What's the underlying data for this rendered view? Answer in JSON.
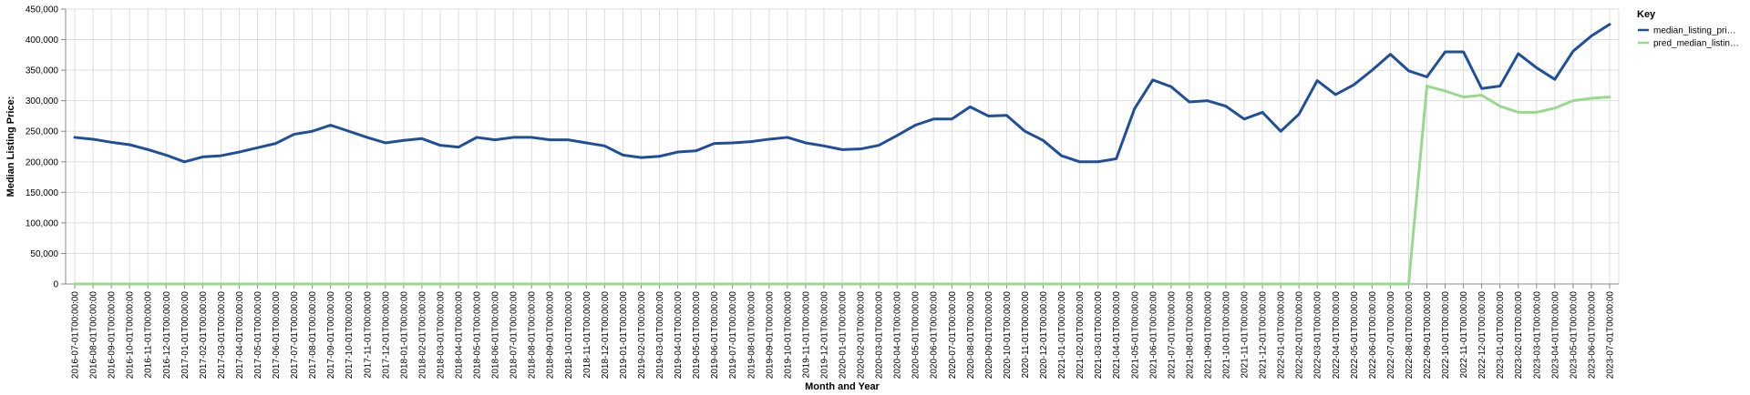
{
  "chart_data": {
    "type": "line",
    "xlabel": "Month and Year",
    "ylabel": "Median Listing Price:",
    "ylim": [
      0,
      450000
    ],
    "yticks": [
      0,
      50000,
      100000,
      150000,
      200000,
      250000,
      300000,
      350000,
      400000,
      450000
    ],
    "ytick_labels": [
      "0",
      "50,000",
      "100,000",
      "150,000",
      "200,000",
      "250,000",
      "300,000",
      "350,000",
      "400,000",
      "450,000"
    ],
    "grid": true,
    "legend": {
      "title": "Key",
      "placement": "right",
      "entries": [
        "median_listing_pri…",
        "pred_median_listin…"
      ]
    },
    "x": [
      "2016-07-01T00:00:00",
      "2016-08-01T00:00:00",
      "2016-09-01T00:00:00",
      "2016-10-01T00:00:00",
      "2016-11-01T00:00:00",
      "2016-12-01T00:00:00",
      "2017-01-01T00:00:00",
      "2017-02-01T00:00:00",
      "2017-03-01T00:00:00",
      "2017-04-01T00:00:00",
      "2017-05-01T00:00:00",
      "2017-06-01T00:00:00",
      "2017-07-01T00:00:00",
      "2017-08-01T00:00:00",
      "2017-09-01T00:00:00",
      "2017-10-01T00:00:00",
      "2017-11-01T00:00:00",
      "2017-12-01T00:00:00",
      "2018-01-01T00:00:00",
      "2018-02-01T00:00:00",
      "2018-03-01T00:00:00",
      "2018-04-01T00:00:00",
      "2018-05-01T00:00:00",
      "2018-06-01T00:00:00",
      "2018-07-01T00:00:00",
      "2018-08-01T00:00:00",
      "2018-09-01T00:00:00",
      "2018-10-01T00:00:00",
      "2018-11-01T00:00:00",
      "2018-12-01T00:00:00",
      "2019-01-01T00:00:00",
      "2019-02-01T00:00:00",
      "2019-03-01T00:00:00",
      "2019-04-01T00:00:00",
      "2019-05-01T00:00:00",
      "2019-06-01T00:00:00",
      "2019-07-01T00:00:00",
      "2019-08-01T00:00:00",
      "2019-09-01T00:00:00",
      "2019-10-01T00:00:00",
      "2019-11-01T00:00:00",
      "2019-12-01T00:00:00",
      "2020-01-01T00:00:00",
      "2020-02-01T00:00:00",
      "2020-03-01T00:00:00",
      "2020-04-01T00:00:00",
      "2020-05-01T00:00:00",
      "2020-06-01T00:00:00",
      "2020-07-01T00:00:00",
      "2020-08-01T00:00:00",
      "2020-09-01T00:00:00",
      "2020-10-01T00:00:00",
      "2020-11-01T00:00:00",
      "2020-12-01T00:00:00",
      "2021-01-01T00:00:00",
      "2021-02-01T00:00:00",
      "2021-03-01T00:00:00",
      "2021-04-01T00:00:00",
      "2021-05-01T00:00:00",
      "2021-06-01T00:00:00",
      "2021-07-01T00:00:00",
      "2021-08-01T00:00:00",
      "2021-09-01T00:00:00",
      "2021-10-01T00:00:00",
      "2021-11-01T00:00:00",
      "2021-12-01T00:00:00",
      "2022-01-01T00:00:00",
      "2022-02-01T00:00:00",
      "2022-03-01T00:00:00",
      "2022-04-01T00:00:00",
      "2022-05-01T00:00:00",
      "2022-06-01T00:00:00",
      "2022-07-01T00:00:00",
      "2022-08-01T00:00:00",
      "2022-09-01T00:00:00",
      "2022-10-01T00:00:00",
      "2022-11-01T00:00:00",
      "2022-12-01T00:00:00",
      "2023-01-01T00:00:00",
      "2023-02-01T00:00:00",
      "2023-03-01T00:00:00",
      "2023-04-01T00:00:00",
      "2023-05-01T00:00:00",
      "2023-06-01T00:00:00",
      "2023-07-01T00:00:00"
    ],
    "series": [
      {
        "name": "median_listing_pri…",
        "color": "#1f4e9a",
        "values": [
          240000,
          237000,
          232000,
          228000,
          220000,
          211000,
          200000,
          208000,
          210000,
          216000,
          223000,
          230000,
          245000,
          250000,
          260000,
          250000,
          240000,
          231000,
          235000,
          238000,
          227000,
          224000,
          240000,
          236000,
          240000,
          240000,
          236000,
          236000,
          231000,
          226000,
          211000,
          207000,
          209000,
          216000,
          218000,
          230000,
          231000,
          233000,
          237000,
          240000,
          231000,
          226000,
          220000,
          221000,
          227000,
          243000,
          260000,
          270000,
          270000,
          290000,
          275000,
          276000,
          250000,
          235000,
          210000,
          200000,
          200000,
          205000,
          287000,
          334000,
          323000,
          298000,
          300000,
          291000,
          270000,
          281000,
          250000,
          278000,
          333000,
          310000,
          326000,
          350000,
          376000,
          349000,
          339000,
          380000,
          380000,
          320000,
          324000,
          377000,
          354000,
          335000,
          381000,
          406000,
          425000
        ]
      },
      {
        "name": "pred_median_listin…",
        "color": "#98d98e",
        "values": [
          0,
          0,
          0,
          0,
          0,
          0,
          0,
          0,
          0,
          0,
          0,
          0,
          0,
          0,
          0,
          0,
          0,
          0,
          0,
          0,
          0,
          0,
          0,
          0,
          0,
          0,
          0,
          0,
          0,
          0,
          0,
          0,
          0,
          0,
          0,
          0,
          0,
          0,
          0,
          0,
          0,
          0,
          0,
          0,
          0,
          0,
          0,
          0,
          0,
          0,
          0,
          0,
          0,
          0,
          0,
          0,
          0,
          0,
          0,
          0,
          0,
          0,
          0,
          0,
          0,
          0,
          0,
          0,
          0,
          0,
          0,
          0,
          0,
          0,
          324000,
          316000,
          306000,
          309000,
          291000,
          281000,
          281000,
          288000,
          300000,
          304000,
          306000
        ]
      }
    ]
  }
}
